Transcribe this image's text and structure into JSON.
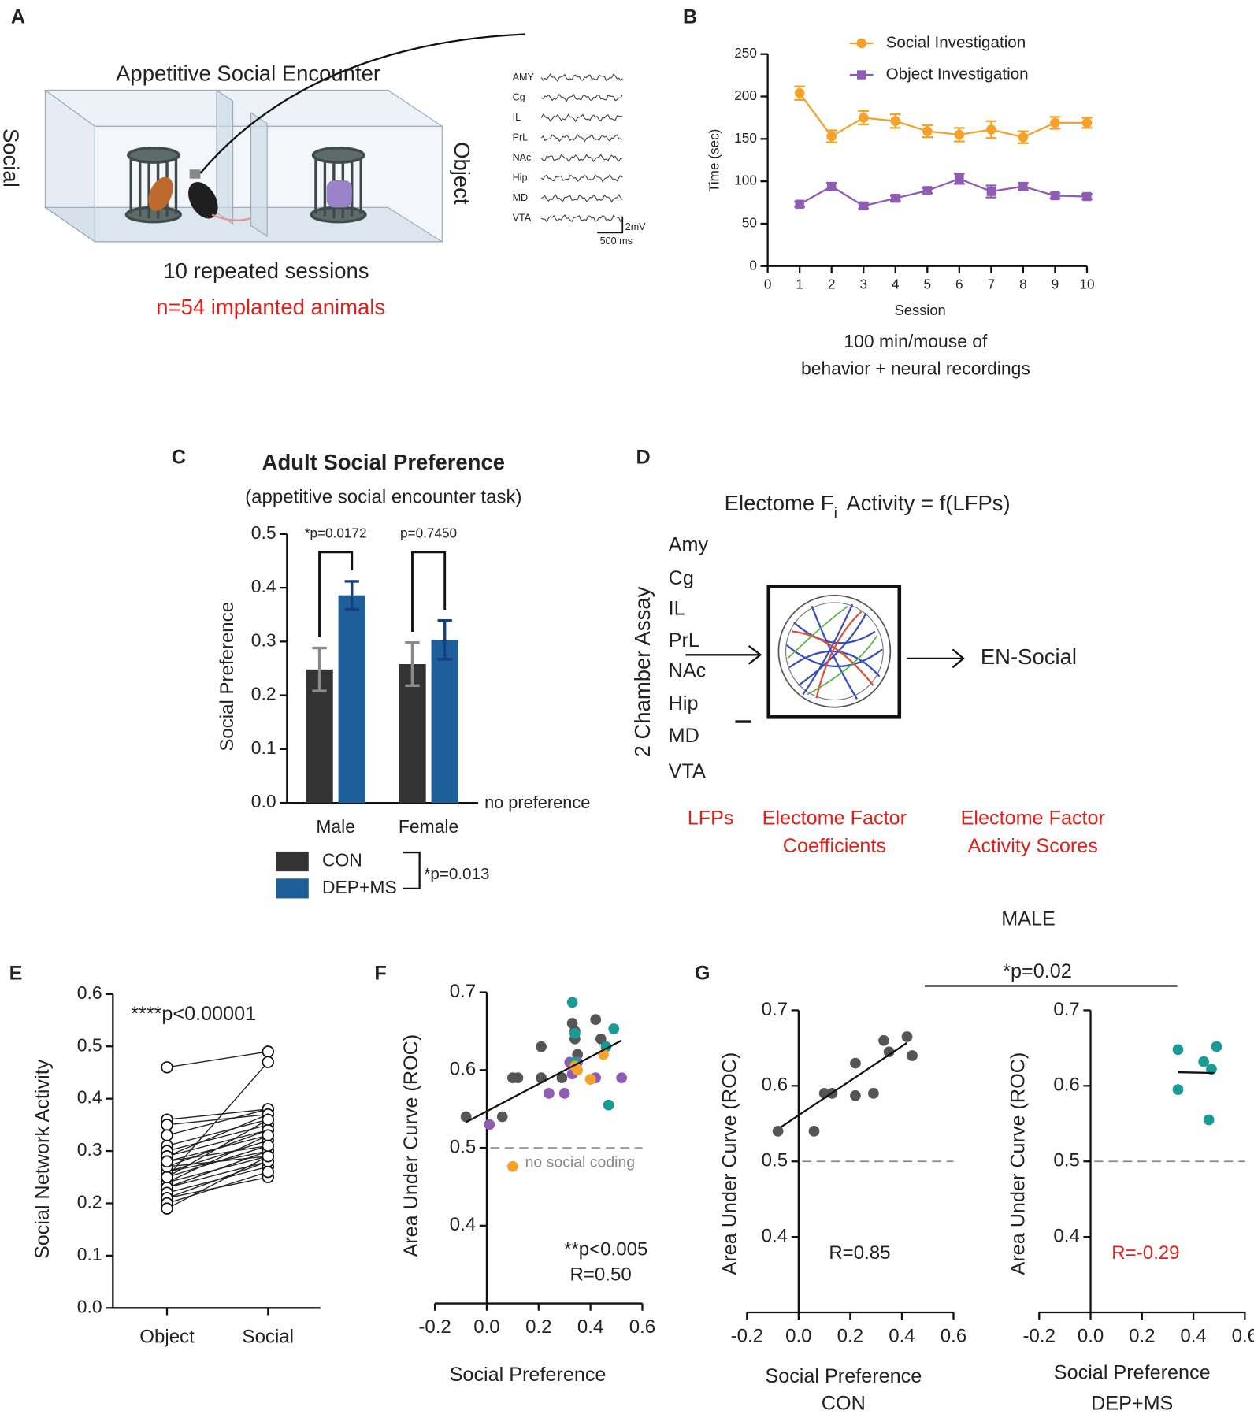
{
  "panel_labels": [
    "A",
    "B",
    "C",
    "D",
    "E",
    "F",
    "G"
  ],
  "panel_a": {
    "title": "Appetitive Social Encounter",
    "left": "Social",
    "right": "Object",
    "regions": [
      "AMY",
      "Cg",
      "IL",
      "PrL",
      "NAc",
      "Hip",
      "MD",
      "VTA"
    ],
    "scale_v": "2mV",
    "scale_t": "500 ms",
    "sessions": "10 repeated sessions",
    "n": "n=54 implanted animals"
  },
  "panel_d": {
    "title": "Electome F",
    "title_sub": "i",
    "title_rest": "Activity = f(LFPs)",
    "regions": [
      "Amy",
      "Cg",
      "IL",
      "PrL",
      "NAc",
      "Hip",
      "MD",
      "VTA"
    ],
    "assay": "2 Chamber Assay",
    "output": "EN-Social",
    "captions": [
      [
        "LFPs"
      ],
      [
        "Electome Factor",
        "Coefficients"
      ],
      [
        "Electome  Factor",
        "Activity Scores"
      ]
    ]
  },
  "panel_g": {
    "title": "MALE",
    "comparison": "*p=0.02"
  },
  "chart_data": [
    {
      "type": "line",
      "xlabel": "Session",
      "ylabel": "Time (sec)",
      "caption": [
        "100 min/mouse of",
        "behavior + neural recordings"
      ],
      "x": [
        1,
        2,
        3,
        4,
        5,
        6,
        7,
        8,
        9,
        10
      ],
      "xlim": [
        0,
        10
      ],
      "xticks": [
        0,
        1,
        2,
        3,
        4,
        5,
        6,
        7,
        8,
        9,
        10
      ],
      "ylim": [
        0,
        250
      ],
      "yticks": [
        0,
        50,
        100,
        150,
        200,
        250
      ],
      "series": [
        {
          "name": "Social Investigation",
          "color": "#f5a22a",
          "marker": "circle",
          "values": [
            204,
            153,
            175,
            171,
            159,
            155,
            161,
            152,
            169,
            169
          ],
          "errors": [
            8,
            7,
            8,
            8,
            7,
            8,
            10,
            7,
            7,
            6
          ]
        },
        {
          "name": "Object Investigation",
          "color": "#8e5cb5",
          "marker": "square",
          "values": [
            73,
            94,
            71,
            80,
            89,
            103,
            88,
            94,
            83,
            82
          ],
          "errors": [
            3,
            4,
            3,
            3,
            3,
            6,
            7,
            4,
            3,
            3
          ]
        }
      ]
    },
    {
      "type": "bar",
      "title": "Adult Social Preference",
      "subtitle": "(appetitive social encounter task)",
      "ylabel": "Social Preference",
      "categories": [
        "Male",
        "Female"
      ],
      "ylim": [
        0,
        0.5
      ],
      "yticks": [
        {
          "value": 0,
          "label": "0.0"
        },
        0.1,
        0.2,
        0.3,
        0.4,
        0.5
      ],
      "series": [
        {
          "name": "CON",
          "color": "#333333",
          "error_color": "#8a8a8a",
          "values": [
            0.248,
            0.258
          ],
          "errors": [
            0.04,
            0.04
          ]
        },
        {
          "name": "DEP+MS",
          "color": "#1f5f99",
          "error_color": "#1a3f80",
          "values": [
            0.386,
            0.303
          ],
          "errors": [
            0.026,
            0.036
          ]
        }
      ],
      "comparisons": [
        "*p=0.0172",
        "p=0.7450"
      ],
      "baseline": "no preference",
      "group_comparison": "*p=0.013"
    },
    {
      "type": "paired",
      "ylabel": "Social Network Activity",
      "categories": [
        "Object",
        "Social"
      ],
      "annotation": "****p<0.00001",
      "ylim": [
        0,
        0.6
      ],
      "yticks": [
        {
          "value": 0,
          "label": "0.0"
        },
        0.1,
        0.2,
        0.3,
        0.4,
        0.5,
        0.6
      ],
      "pairs": [
        [
          0.46,
          0.49
        ],
        [
          0.36,
          0.38
        ],
        [
          0.35,
          0.37
        ],
        [
          0.33,
          0.38
        ],
        [
          0.31,
          0.36
        ],
        [
          0.3,
          0.35
        ],
        [
          0.29,
          0.37
        ],
        [
          0.29,
          0.34
        ],
        [
          0.28,
          0.33
        ],
        [
          0.27,
          0.34
        ],
        [
          0.26,
          0.32
        ],
        [
          0.26,
          0.3
        ],
        [
          0.25,
          0.36
        ],
        [
          0.25,
          0.31
        ],
        [
          0.24,
          0.29
        ],
        [
          0.24,
          0.33
        ],
        [
          0.23,
          0.28
        ],
        [
          0.23,
          0.3
        ],
        [
          0.22,
          0.27
        ],
        [
          0.21,
          0.28
        ],
        [
          0.21,
          0.25
        ],
        [
          0.2,
          0.26
        ],
        [
          0.19,
          0.29
        ],
        [
          0.25,
          0.47
        ],
        [
          0.27,
          0.29
        ],
        [
          0.28,
          0.31
        ]
      ]
    },
    {
      "type": "scatter",
      "xlabel": "Social Preference",
      "ylabel": "Area Under Curve (ROC)",
      "xlim": [
        -0.2,
        0.6
      ],
      "xticks": [
        -0.2,
        {
          "value": 0,
          "label": "0.0"
        },
        0.2,
        0.4,
        0.6
      ],
      "ylim": [
        0.3,
        0.7
      ],
      "yticks": [
        0.4,
        0.5,
        0.6,
        0.7
      ],
      "reference": {
        "value": 0.5,
        "label": "no social coding"
      },
      "fit": {
        "x": [
          -0.08,
          0.52
        ],
        "y": [
          0.533,
          0.638
        ]
      },
      "annotations": [
        "**p<0.005",
        "R=0.50"
      ],
      "annotation_color": "#222222",
      "series": [
        {
          "color": "#555555",
          "x": [
            -0.08,
            0.06,
            0.1,
            0.12,
            0.21,
            0.21,
            0.29,
            0.33,
            0.34,
            0.34,
            0.42,
            0.44,
            0.35
          ],
          "values": [
            0.54,
            0.54,
            0.59,
            0.59,
            0.63,
            0.59,
            0.59,
            0.66,
            0.65,
            0.64,
            0.665,
            0.64,
            0.62
          ]
        },
        {
          "color": "#8e5cb5",
          "x": [
            0.01,
            0.24,
            0.3,
            0.32,
            0.34,
            0.35,
            0.42,
            0.52,
            0.33
          ],
          "values": [
            0.53,
            0.57,
            0.57,
            0.61,
            0.61,
            0.61,
            0.59,
            0.59,
            0.595
          ]
        },
        {
          "color": "#1a9a94",
          "x": [
            0.33,
            0.34,
            0.46,
            0.49,
            0.47,
            0.34
          ],
          "values": [
            0.687,
            0.647,
            0.63,
            0.653,
            0.555,
            0.61
          ]
        },
        {
          "color": "#f5a22a",
          "x": [
            0.1,
            0.34,
            0.35,
            0.4,
            0.45
          ],
          "values": [
            0.476,
            0.605,
            0.6,
            0.588,
            0.62
          ]
        }
      ]
    },
    {
      "type": "scatter",
      "xlabel": "Social Preference",
      "group": "CON",
      "ylabel": "Area Under Curve (ROC)",
      "xlim": [
        -0.2,
        0.6
      ],
      "xticks": [
        -0.2,
        {
          "value": 0,
          "label": "0.0"
        },
        0.2,
        0.4,
        0.6
      ],
      "ylim": [
        0.3,
        0.7
      ],
      "yticks": [
        0.4,
        0.5,
        0.6,
        0.7
      ],
      "reference": {
        "value": 0.5
      },
      "fit": {
        "x": [
          -0.07,
          0.42
        ],
        "y": [
          0.545,
          0.657
        ]
      },
      "annotations": [
        "R=0.85"
      ],
      "annotation_color": "#222222",
      "series": [
        {
          "color": "#555555",
          "x": [
            -0.08,
            0.06,
            0.1,
            0.13,
            0.22,
            0.22,
            0.29,
            0.33,
            0.35,
            0.42,
            0.44
          ],
          "values": [
            0.54,
            0.54,
            0.59,
            0.59,
            0.63,
            0.587,
            0.59,
            0.66,
            0.645,
            0.665,
            0.64
          ]
        }
      ]
    },
    {
      "type": "scatter",
      "xlabel": "Social Preference",
      "group": "DEP+MS",
      "ylabel": "Area Under Curve (ROC)",
      "xlim": [
        -0.2,
        0.6
      ],
      "xticks": [
        -0.2,
        {
          "value": 0,
          "label": "0.0"
        },
        0.2,
        0.4,
        0.6
      ],
      "ylim": [
        0.3,
        0.7
      ],
      "yticks": [
        0.4,
        0.5,
        0.6,
        0.7
      ],
      "reference": {
        "value": 0.5
      },
      "fit": {
        "x": [
          0.34,
          0.48
        ],
        "y": [
          0.618,
          0.617
        ]
      },
      "annotations": [
        "R=-0.29"
      ],
      "annotation_color": "#e0201b",
      "series": [
        {
          "color": "#1a9a94",
          "x": [
            0.34,
            0.34,
            0.44,
            0.46,
            0.47,
            0.49
          ],
          "values": [
            0.595,
            0.648,
            0.632,
            0.555,
            0.622,
            0.652
          ]
        }
      ]
    }
  ]
}
